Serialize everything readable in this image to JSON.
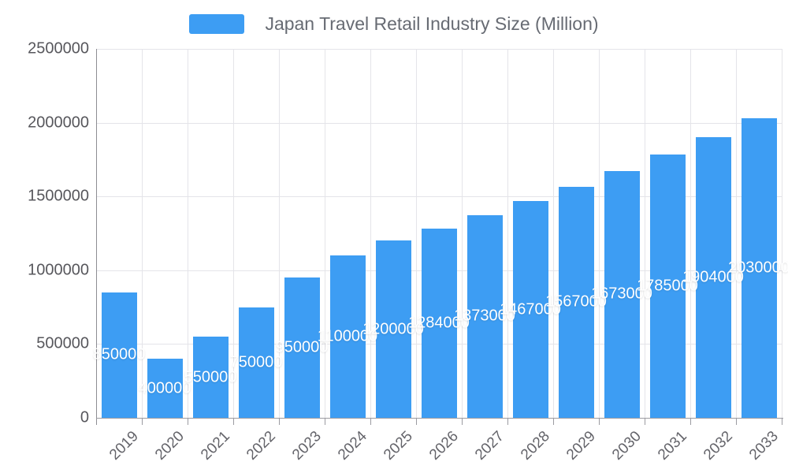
{
  "legend": {
    "label": "Japan Travel Retail Industry Size (Million)",
    "swatch_color": "#3d9df3"
  },
  "chart_data": {
    "type": "bar",
    "title": "Japan Travel Retail Industry Size (Million)",
    "categories": [
      "2019",
      "2020",
      "2021",
      "2022",
      "2023",
      "2024",
      "2025",
      "2026",
      "2027",
      "2028",
      "2029",
      "2030",
      "2031",
      "2032",
      "2033"
    ],
    "values": [
      850000,
      400000,
      550000,
      750000,
      950000,
      1100000,
      1200000,
      1284000,
      1373000,
      1467000,
      1567000,
      1673000,
      1785000,
      1904000,
      2030000
    ],
    "xlabel": "",
    "ylabel": "",
    "ylim": [
      0,
      2500000
    ],
    "yticks": [
      0,
      500000,
      1000000,
      1500000,
      2000000,
      2500000
    ],
    "grid": true,
    "legend_position": "top-center",
    "bar_color": "#3d9df3",
    "bar_label_color": "#ffffff",
    "axis_text_color": "#64646a"
  }
}
